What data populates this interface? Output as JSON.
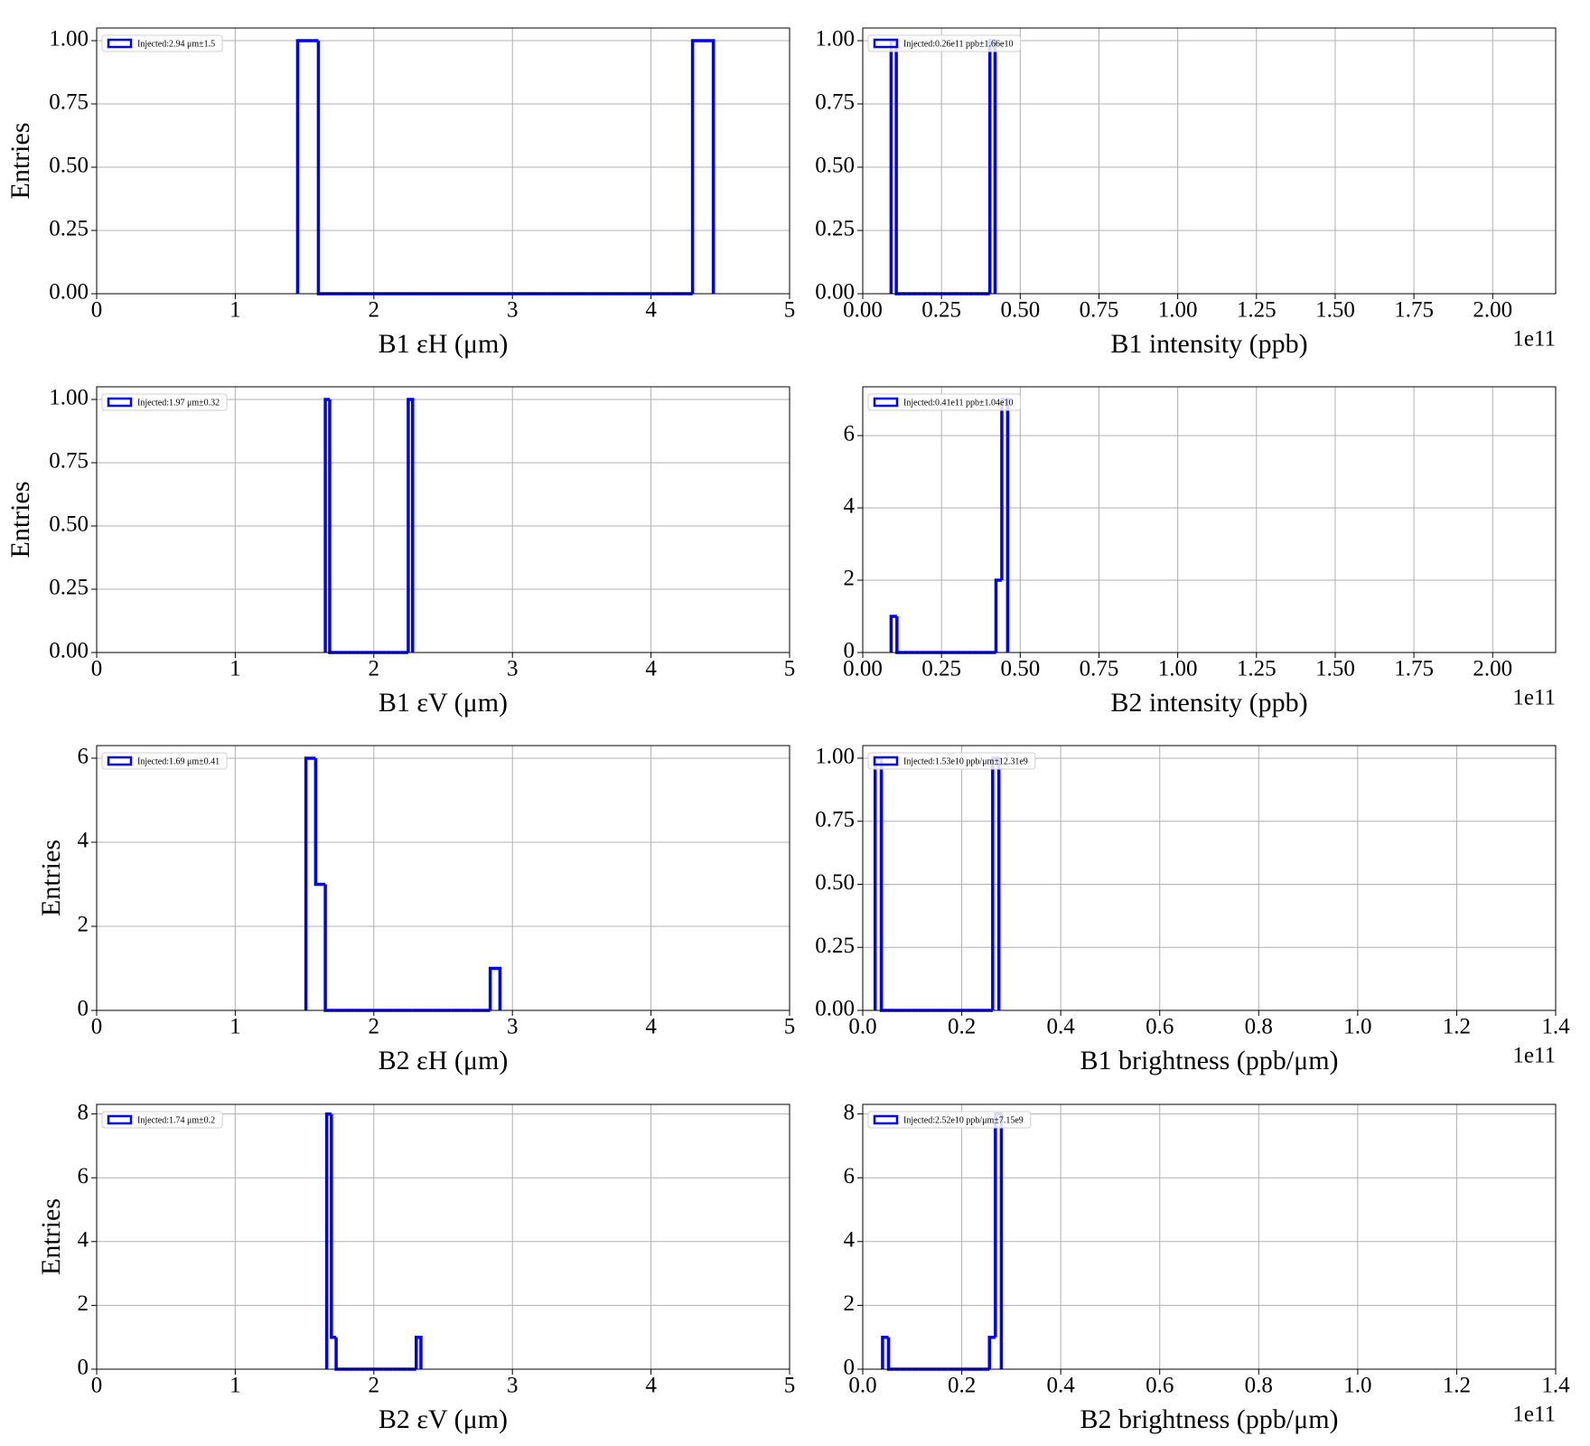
{
  "chart_data": [
    {
      "type": "histogram",
      "xlabel": "B1 εH (μm)",
      "ylabel": "Entries",
      "grid": true,
      "legend_loc": "upper left",
      "xlim": [
        0,
        5
      ],
      "xticks": [
        0,
        1,
        2,
        3,
        4,
        5
      ],
      "ylim": [
        0,
        1.05
      ],
      "yticks": [
        {
          "value": 0,
          "label": "0.00"
        },
        {
          "value": 0.25,
          "label": "0.25"
        },
        {
          "value": 0.5,
          "label": "0.50"
        },
        {
          "value": 0.75,
          "label": "0.75"
        },
        {
          "value": 1,
          "label": "1.00"
        }
      ],
      "bins": [
        1.45,
        1.6,
        1.75,
        1.9,
        2.05,
        2.2,
        2.35,
        2.5,
        2.65,
        2.8,
        2.95,
        3.1,
        3.25,
        3.4,
        3.55,
        3.7,
        3.85,
        4.0,
        4.15,
        4.3,
        4.45
      ],
      "series": [
        {
          "name": "Injected:2.94 μm±1.5",
          "color": "#0000ff",
          "values": [
            1,
            0,
            0,
            0,
            0,
            0,
            0,
            0,
            0,
            0,
            0,
            0,
            0,
            0,
            0,
            0,
            0,
            0,
            0,
            1
          ]
        }
      ]
    },
    {
      "type": "histogram",
      "xlabel": "B1 intensity (ppb)",
      "x_offset_text": "1e11",
      "grid": true,
      "legend_loc": "upper left",
      "xlim": [
        0,
        2.2
      ],
      "xticks": [
        {
          "value": 0,
          "label": "0.00"
        },
        {
          "value": 0.25,
          "label": "0.25"
        },
        {
          "value": 0.5,
          "label": "0.50"
        },
        {
          "value": 0.75,
          "label": "0.75"
        },
        {
          "value": 1,
          "label": "1.00"
        },
        {
          "value": 1.25,
          "label": "1.25"
        },
        {
          "value": 1.5,
          "label": "1.50"
        },
        {
          "value": 1.75,
          "label": "1.75"
        },
        {
          "value": 2,
          "label": "2.00"
        }
      ],
      "ylim": [
        0,
        1.05
      ],
      "yticks": [
        {
          "value": 0,
          "label": "0.00"
        },
        {
          "value": 0.25,
          "label": "0.25"
        },
        {
          "value": 0.5,
          "label": "0.50"
        },
        {
          "value": 0.75,
          "label": "0.75"
        },
        {
          "value": 1,
          "label": "1.00"
        }
      ],
      "bins": [
        0.09,
        0.1065,
        0.123,
        0.1395,
        0.156,
        0.1725,
        0.189,
        0.2055,
        0.222,
        0.2385,
        0.255,
        0.2715,
        0.288,
        0.3045,
        0.321,
        0.3375,
        0.354,
        0.3705,
        0.387,
        0.4035,
        0.42
      ],
      "series": [
        {
          "name": "Injected:0.26e11 ppb±1.66e10",
          "color": "#0000ff",
          "values": [
            1,
            0,
            0,
            0,
            0,
            0,
            0,
            0,
            0,
            0,
            0,
            0,
            0,
            0,
            0,
            0,
            0,
            0,
            0,
            1
          ]
        }
      ]
    },
    {
      "type": "histogram",
      "xlabel": "B1 εV (μm)",
      "ylabel": "Entries",
      "grid": true,
      "legend_loc": "upper left",
      "xlim": [
        0,
        5
      ],
      "xticks": [
        0,
        1,
        2,
        3,
        4,
        5
      ],
      "ylim": [
        0,
        1.05
      ],
      "yticks": [
        {
          "value": 0,
          "label": "0.00"
        },
        {
          "value": 0.25,
          "label": "0.25"
        },
        {
          "value": 0.5,
          "label": "0.50"
        },
        {
          "value": 0.75,
          "label": "0.75"
        },
        {
          "value": 1,
          "label": "1.00"
        }
      ],
      "bins": [
        1.65,
        1.6815,
        1.713,
        1.7445,
        1.776,
        1.8075,
        1.839,
        1.8705,
        1.902,
        1.9335,
        1.965,
        1.9965,
        2.028,
        2.0595,
        2.091,
        2.1225,
        2.154,
        2.1855,
        2.217,
        2.2485,
        2.28
      ],
      "series": [
        {
          "name": "Injected:1.97 μm±0.32",
          "color": "#0000ff",
          "values": [
            1,
            0,
            0,
            0,
            0,
            0,
            0,
            0,
            0,
            0,
            0,
            0,
            0,
            0,
            0,
            0,
            0,
            0,
            0,
            1
          ]
        }
      ]
    },
    {
      "type": "histogram",
      "xlabel": "B2 intensity (ppb)",
      "x_offset_text": "1e11",
      "grid": true,
      "legend_loc": "upper left",
      "xlim": [
        0,
        2.2
      ],
      "xticks": [
        {
          "value": 0,
          "label": "0.00"
        },
        {
          "value": 0.25,
          "label": "0.25"
        },
        {
          "value": 0.5,
          "label": "0.50"
        },
        {
          "value": 0.75,
          "label": "0.75"
        },
        {
          "value": 1,
          "label": "1.00"
        },
        {
          "value": 1.25,
          "label": "1.25"
        },
        {
          "value": 1.5,
          "label": "1.50"
        },
        {
          "value": 1.75,
          "label": "1.75"
        },
        {
          "value": 2,
          "label": "2.00"
        }
      ],
      "ylim": [
        0,
        7.35
      ],
      "yticks": [
        0,
        2,
        4,
        6
      ],
      "bins": [
        0.09,
        0.1085,
        0.127,
        0.1455,
        0.164,
        0.1825,
        0.201,
        0.2195,
        0.238,
        0.2565,
        0.275,
        0.2935,
        0.312,
        0.3305,
        0.349,
        0.3675,
        0.386,
        0.4045,
        0.423,
        0.4415,
        0.46
      ],
      "series": [
        {
          "name": "Injected:0.41e11 ppb±1.04e10",
          "color": "#0000ff",
          "values": [
            1,
            0,
            0,
            0,
            0,
            0,
            0,
            0,
            0,
            0,
            0,
            0,
            0,
            0,
            0,
            0,
            0,
            0,
            2,
            7
          ]
        }
      ]
    },
    {
      "type": "histogram",
      "xlabel": "B2 εH (μm)",
      "ylabel": "Entries",
      "grid": true,
      "legend_loc": "upper left",
      "xlim": [
        0,
        5
      ],
      "xticks": [
        0,
        1,
        2,
        3,
        4,
        5
      ],
      "ylim": [
        0,
        6.3
      ],
      "yticks": [
        0,
        2,
        4,
        6
      ],
      "bins": [
        1.51,
        1.58,
        1.65,
        1.72,
        1.79,
        1.86,
        1.93,
        2.0,
        2.07,
        2.14,
        2.21,
        2.28,
        2.35,
        2.42,
        2.49,
        2.56,
        2.63,
        2.7,
        2.77,
        2.84,
        2.91
      ],
      "series": [
        {
          "name": "Injected:1.69 μm±0.41",
          "color": "#0000ff",
          "values": [
            6,
            3,
            0,
            0,
            0,
            0,
            0,
            0,
            0,
            0,
            0,
            0,
            0,
            0,
            0,
            0,
            0,
            0,
            0,
            1
          ]
        }
      ]
    },
    {
      "type": "histogram",
      "xlabel": "B1 brightness (ppb/μm)",
      "x_offset_text": "1e11",
      "grid": true,
      "legend_loc": "upper left",
      "xlim": [
        0,
        1.4
      ],
      "xticks": [
        {
          "value": 0,
          "label": "0.0"
        },
        0.2,
        0.4,
        0.6,
        0.8,
        {
          "value": 1,
          "label": "1.0"
        },
        1.2,
        1.4
      ],
      "ylim": [
        0,
        1.05
      ],
      "yticks": [
        {
          "value": 0,
          "label": "0.00"
        },
        {
          "value": 0.25,
          "label": "0.25"
        },
        {
          "value": 0.5,
          "label": "0.50"
        },
        {
          "value": 0.75,
          "label": "0.75"
        },
        {
          "value": 1,
          "label": "1.00"
        }
      ],
      "bins": [
        0.025,
        0.0375,
        0.05,
        0.0625,
        0.075,
        0.0875,
        0.1,
        0.1125,
        0.125,
        0.1375,
        0.15,
        0.1625,
        0.175,
        0.1875,
        0.2,
        0.2125,
        0.225,
        0.2375,
        0.25,
        0.2625,
        0.275
      ],
      "series": [
        {
          "name": "Injected:1.53e10 ppb/μm±12.31e9",
          "color": "#0000ff",
          "values": [
            1,
            0,
            0,
            0,
            0,
            0,
            0,
            0,
            0,
            0,
            0,
            0,
            0,
            0,
            0,
            0,
            0,
            0,
            0,
            1
          ]
        }
      ]
    },
    {
      "type": "histogram",
      "xlabel": "B2 εV (μm)",
      "ylabel": "Entries",
      "grid": true,
      "legend_loc": "upper left",
      "xlim": [
        0,
        5
      ],
      "xticks": [
        0,
        1,
        2,
        3,
        4,
        5
      ],
      "ylim": [
        0,
        8.3
      ],
      "yticks": [
        0,
        2,
        4,
        6,
        8
      ],
      "bins": [
        1.66,
        1.694,
        1.728,
        1.762,
        1.796,
        1.83,
        1.864,
        1.898,
        1.932,
        1.966,
        2.0,
        2.034,
        2.068,
        2.102,
        2.136,
        2.17,
        2.204,
        2.238,
        2.272,
        2.306,
        2.34
      ],
      "series": [
        {
          "name": "Injected:1.74 μm±0.2",
          "color": "#0000ff",
          "values": [
            8,
            1,
            0,
            0,
            0,
            0,
            0,
            0,
            0,
            0,
            0,
            0,
            0,
            0,
            0,
            0,
            0,
            0,
            0,
            1
          ]
        }
      ]
    },
    {
      "type": "histogram",
      "xlabel": "B2 brightness (ppb/μm)",
      "x_offset_text": "1e11",
      "grid": true,
      "legend_loc": "upper left",
      "xlim": [
        0,
        1.4
      ],
      "xticks": [
        {
          "value": 0,
          "label": "0.0"
        },
        0.2,
        0.4,
        0.6,
        0.8,
        {
          "value": 1,
          "label": "1.0"
        },
        1.2,
        1.4
      ],
      "ylim": [
        0,
        8.3
      ],
      "yticks": [
        0,
        2,
        4,
        6,
        8
      ],
      "bins": [
        0.04,
        0.052,
        0.064,
        0.076,
        0.088,
        0.1,
        0.112,
        0.124,
        0.136,
        0.148,
        0.16,
        0.172,
        0.184,
        0.196,
        0.208,
        0.22,
        0.232,
        0.244,
        0.256,
        0.268,
        0.28
      ],
      "series": [
        {
          "name": "Injected:2.52e10 ppb/μm±7.15e9",
          "color": "#0000ff",
          "values": [
            1,
            0,
            0,
            0,
            0,
            0,
            0,
            0,
            0,
            0,
            0,
            0,
            0,
            0,
            0,
            0,
            0,
            0,
            1,
            8
          ]
        }
      ]
    }
  ]
}
